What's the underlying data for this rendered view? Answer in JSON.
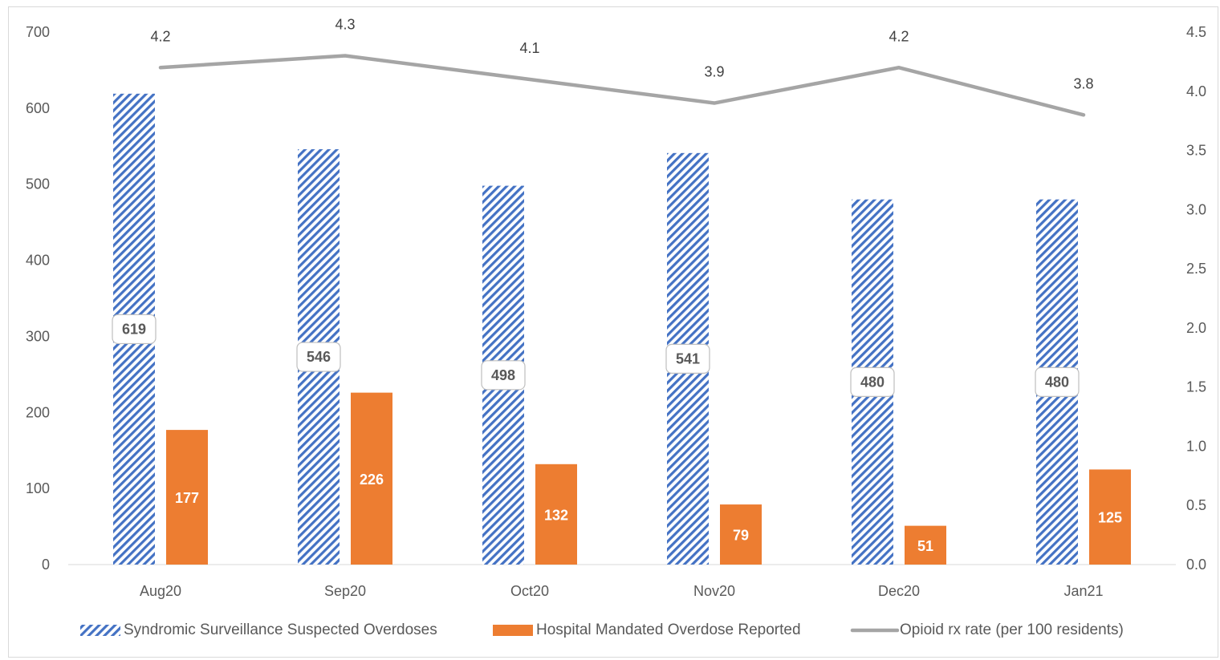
{
  "chart_data": {
    "type": "bar",
    "categories": [
      "Aug20",
      "Sep20",
      "Oct20",
      "Nov20",
      "Dec20",
      "Jan21"
    ],
    "series": [
      {
        "name": "Syndromic Surveillance Suspected Overdoses",
        "type": "bar",
        "axis": "left",
        "values": [
          619,
          546,
          498,
          541,
          480,
          480
        ],
        "color": "#4472c4",
        "pattern": "diagonal-hatch"
      },
      {
        "name": "Hospital Mandated Overdose Reported",
        "type": "bar",
        "axis": "left",
        "values": [
          177,
          226,
          132,
          79,
          51,
          125
        ],
        "color": "#ed7d31"
      },
      {
        "name": "Opioid rx rate (per 100 residents)",
        "type": "line",
        "axis": "right",
        "values": [
          4.2,
          4.3,
          4.1,
          3.9,
          4.2,
          3.8
        ],
        "color": "#a5a5a5"
      }
    ],
    "y_left": {
      "min": 0,
      "max": 700,
      "step": 100,
      "ticks": [
        "0",
        "100",
        "200",
        "300",
        "400",
        "500",
        "600",
        "700"
      ]
    },
    "y_right": {
      "min": 0,
      "max": 4.5,
      "step": 0.5,
      "ticks": [
        "0.0",
        "0.5",
        "1.0",
        "1.5",
        "2.0",
        "2.5",
        "3.0",
        "3.5",
        "4.0",
        "4.5"
      ]
    },
    "line_labels": [
      "4.2",
      "4.3",
      "4.1",
      "3.9",
      "4.2",
      "3.8"
    ],
    "grid": false,
    "legend_position": "bottom",
    "title": "",
    "xlabel": "",
    "ylabel": ""
  }
}
